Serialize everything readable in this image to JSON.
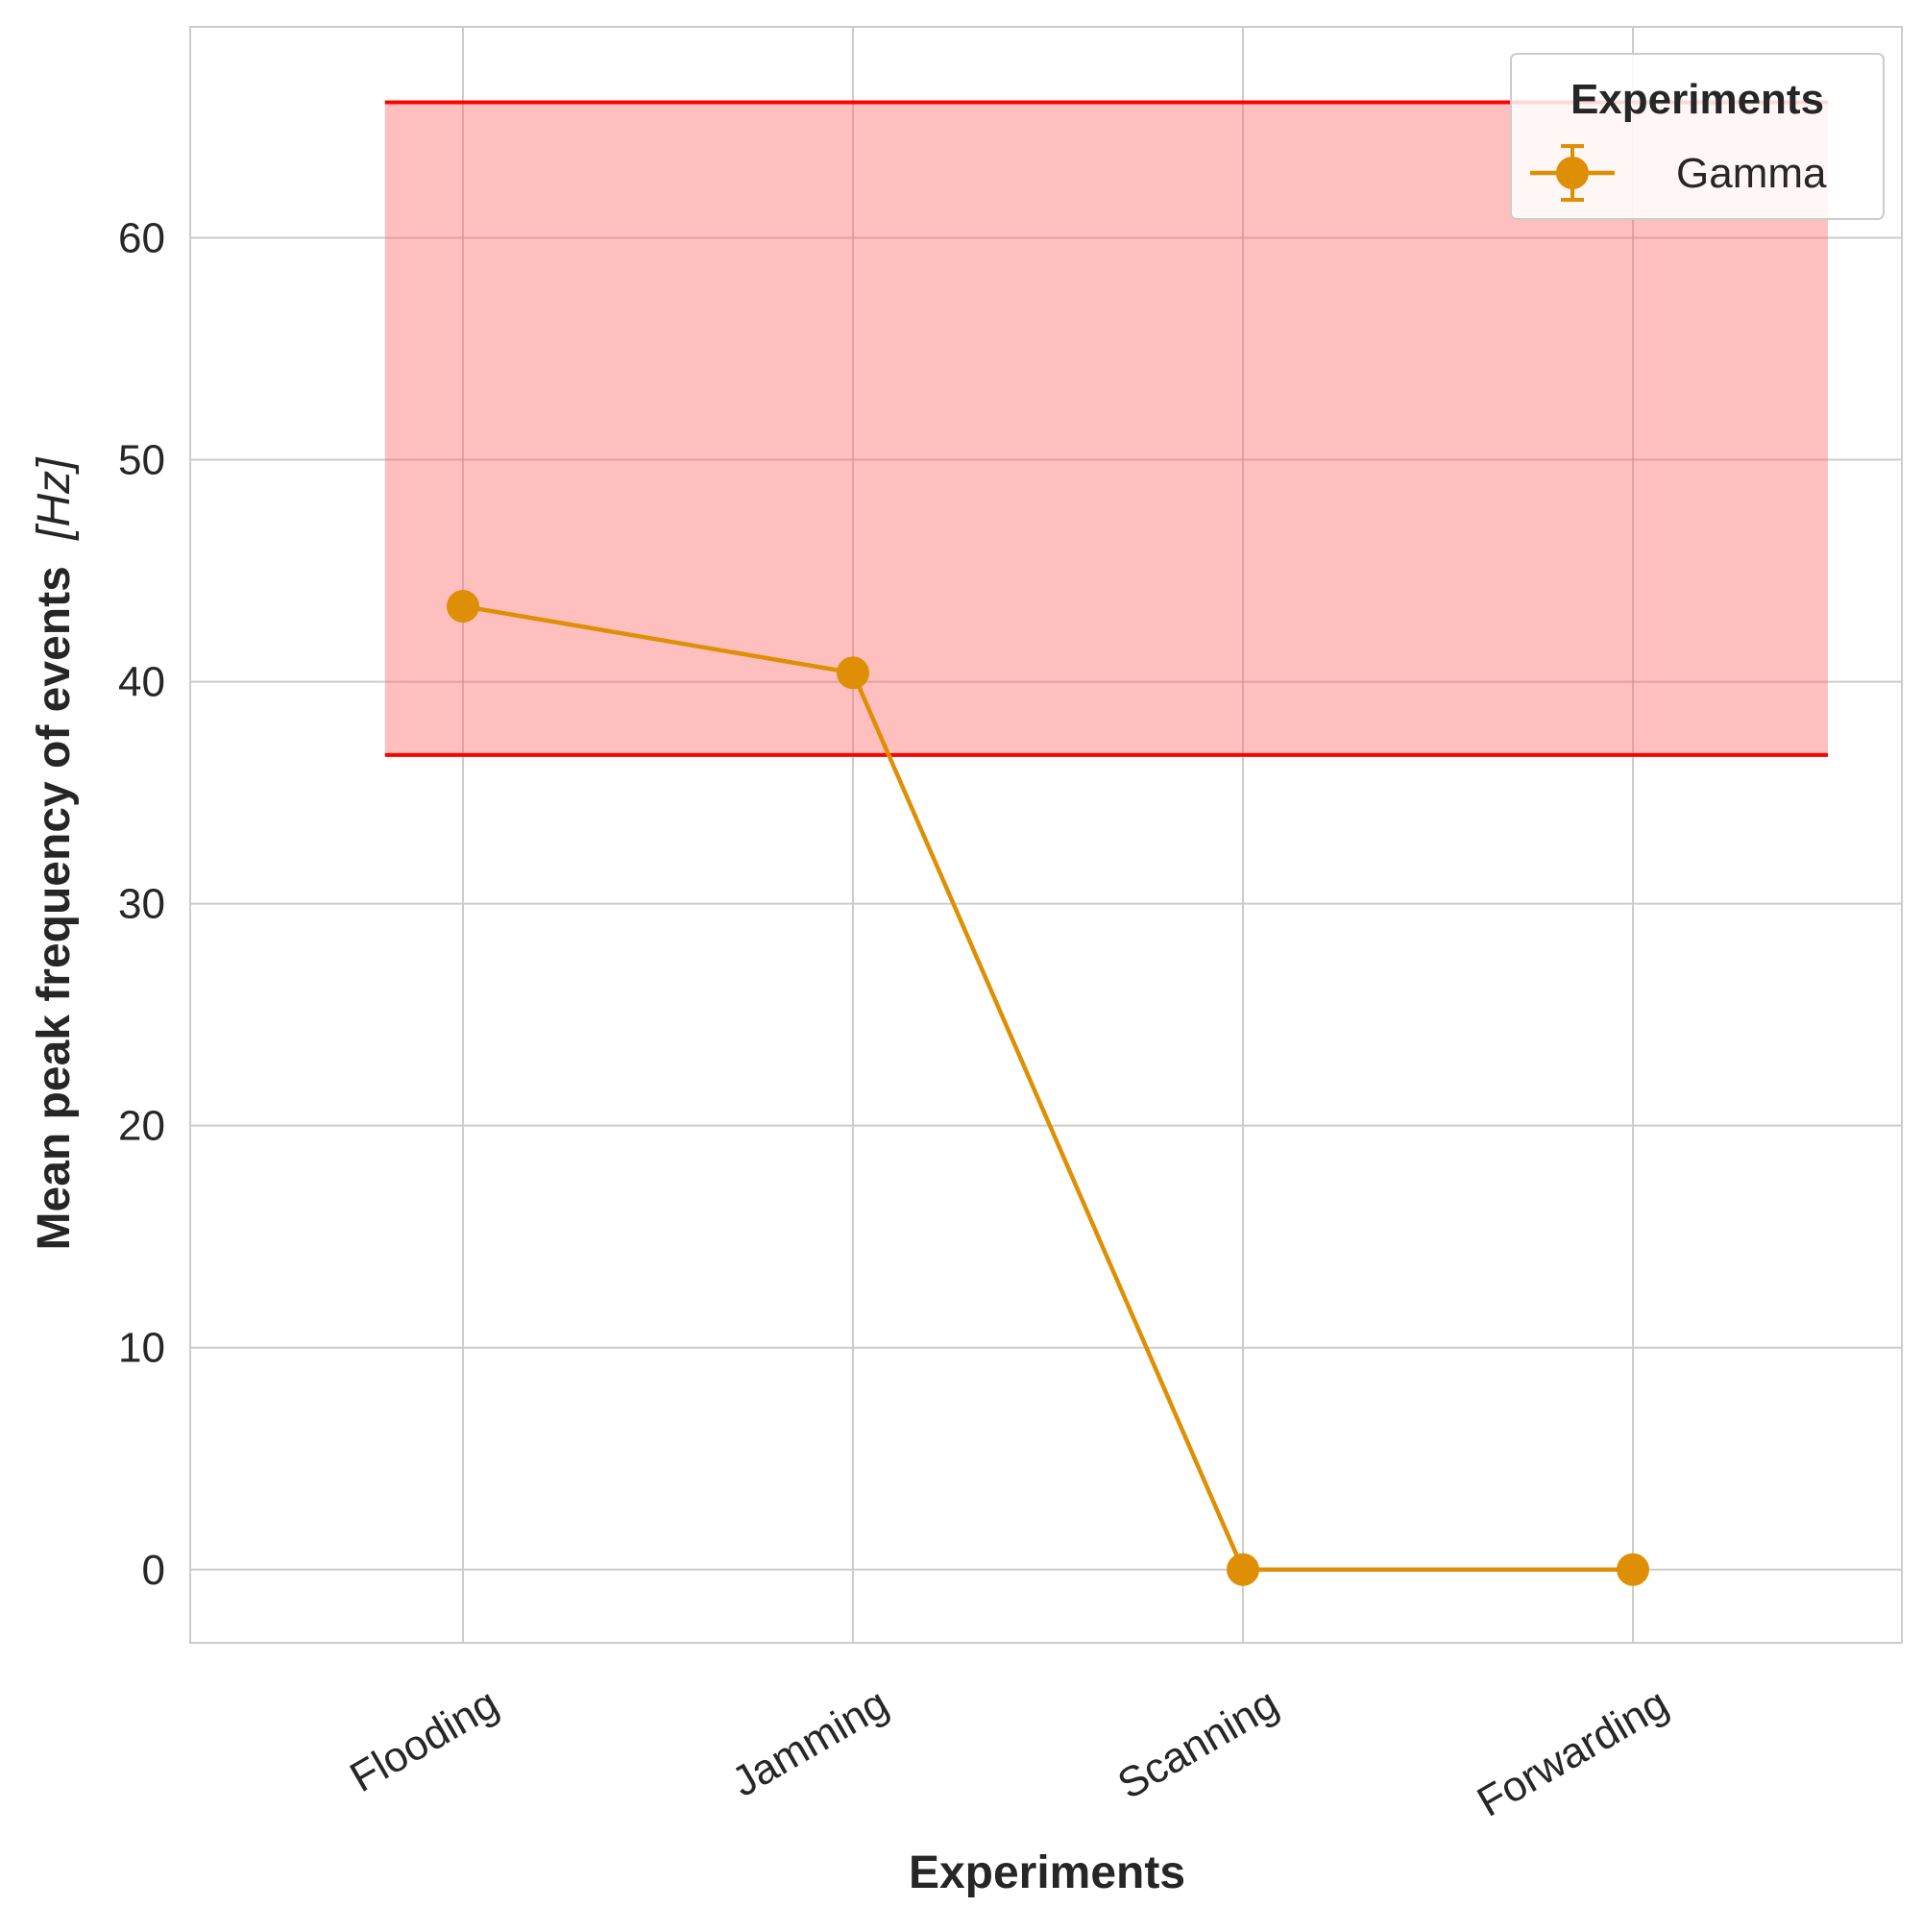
{
  "chart_data": {
    "type": "line",
    "categories": [
      "Flooding",
      "Jamming",
      "Scanning",
      "Forwarding"
    ],
    "series": [
      {
        "name": "Gamma",
        "values": [
          43.4,
          40.4,
          0,
          0
        ],
        "color": "#de8f05"
      }
    ],
    "band": {
      "y_low": 36.7,
      "y_high": 66.1,
      "fill": "#ffbcbc",
      "edge": "#ff0000"
    },
    "xlabel": "Experiments",
    "ylabel": "Mean peak frequency of events",
    "ylabel_unit": "[Hz]",
    "ylim": [
      -3.3,
      69.5
    ],
    "yticks": [
      0,
      10,
      20,
      30,
      40,
      50,
      60
    ],
    "grid": true,
    "legend": {
      "title": "Experiments",
      "placement": "top-right"
    }
  }
}
